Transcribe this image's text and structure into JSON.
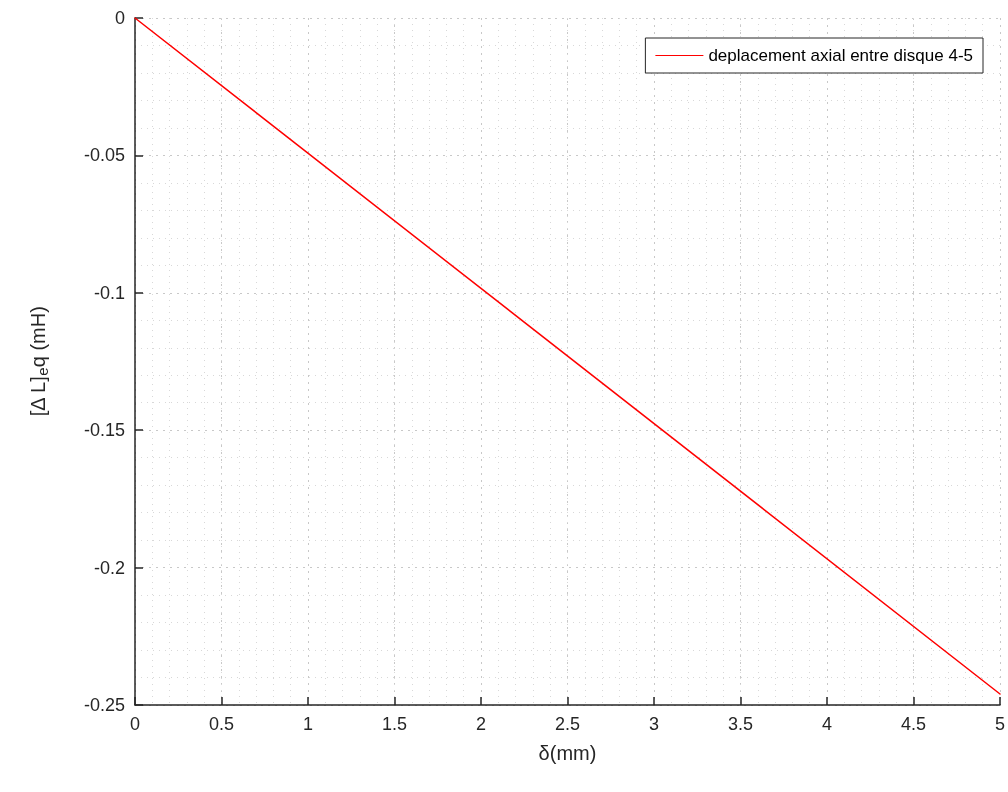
{
  "chart_data": {
    "type": "line",
    "xlabel": "δ(mm)",
    "ylabel": "[Δ L]$_{e}$q (mH)",
    "x": [
      0,
      5
    ],
    "series": [
      {
        "name": "deplacement axial entre disque 4-5",
        "color": "#ff0000",
        "values": [
          0,
          -0.246
        ]
      }
    ],
    "xlim": [
      0,
      5
    ],
    "xticks": [
      0,
      0.5,
      1,
      1.5,
      2,
      2.5,
      3,
      3.5,
      4,
      4.5,
      5
    ],
    "ylim": [
      -0.25,
      0
    ],
    "yticks": [
      -0.25,
      -0.2,
      -0.15,
      -0.1,
      -0.05,
      0
    ],
    "grid": true,
    "legend": "top right",
    "marker": "none",
    "line_style": "solid"
  }
}
